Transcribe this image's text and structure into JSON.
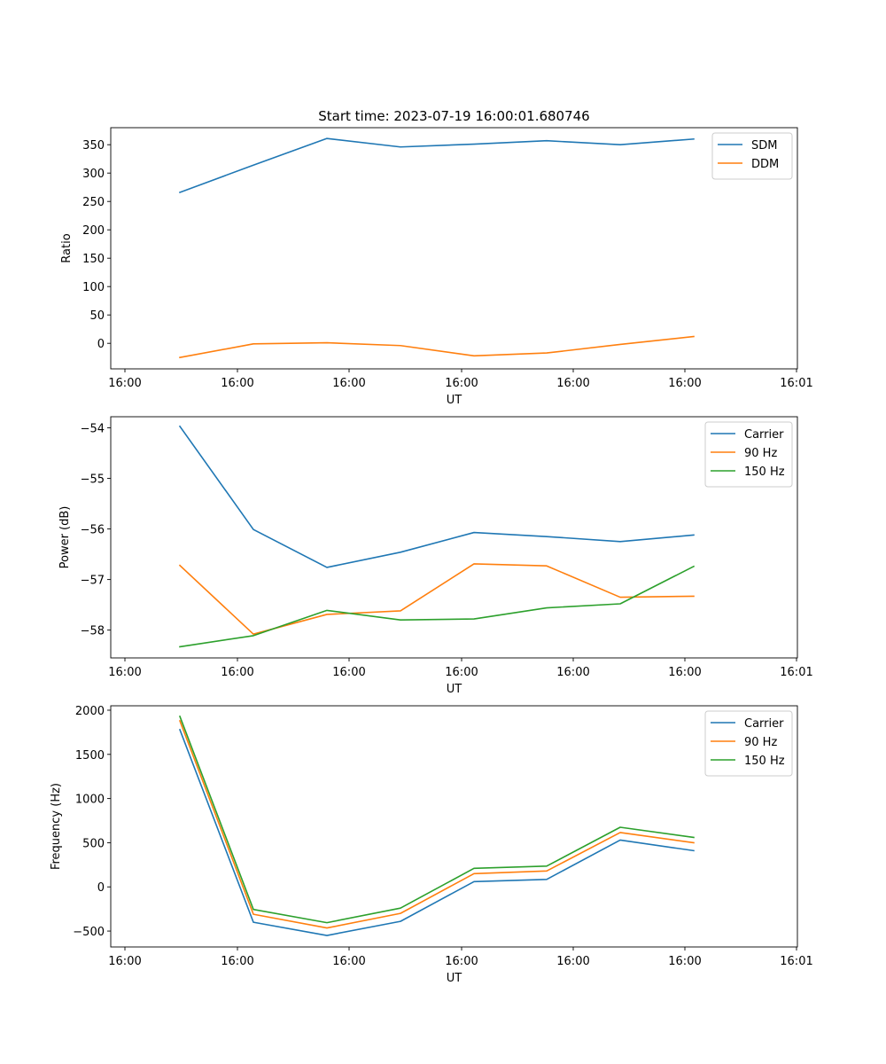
{
  "figure_title": "Start time: 2023-07-19 16:00:01.680746",
  "colors": {
    "blue": "#1f77b4",
    "orange": "#ff7f0e",
    "green": "#2ca02c"
  },
  "chart_data": [
    {
      "type": "line",
      "title": "Start time: 2023-07-19 16:00:01.680746",
      "xlabel": "UT",
      "ylabel": "Ratio",
      "x_tick_labels": [
        "16:00",
        "16:00",
        "16:00",
        "16:00",
        "16:00",
        "16:00",
        "16:01"
      ],
      "y_ticks": [
        0,
        50,
        100,
        150,
        200,
        250,
        300,
        350
      ],
      "ylim": [
        -45,
        380
      ],
      "legend_position": "top-right",
      "x": [
        1,
        2,
        3,
        4,
        5,
        6,
        7,
        8
      ],
      "series": [
        {
          "name": "SDM",
          "color": "#1f77b4",
          "values": [
            266,
            314,
            361,
            346,
            351,
            357,
            350,
            360
          ]
        },
        {
          "name": "DDM",
          "color": "#ff7f0e",
          "values": [
            -25,
            -1,
            1,
            -4,
            -22,
            -17,
            -2,
            12
          ]
        }
      ]
    },
    {
      "type": "line",
      "title": "",
      "xlabel": "UT",
      "ylabel": "Power (dB)",
      "x_tick_labels": [
        "16:00",
        "16:00",
        "16:00",
        "16:00",
        "16:00",
        "16:00",
        "16:01"
      ],
      "y_ticks": [
        -58,
        -57,
        -56,
        -55,
        -54
      ],
      "y_tick_labels": [
        "−58",
        "−57",
        "−56",
        "−55",
        "−54"
      ],
      "ylim": [
        -58.55,
        -53.78
      ],
      "legend_position": "top-right",
      "x": [
        1,
        2,
        3,
        4,
        5,
        6,
        7,
        8
      ],
      "series": [
        {
          "name": "Carrier",
          "color": "#1f77b4",
          "values": [
            -53.97,
            -56.01,
            -56.76,
            -56.46,
            -56.07,
            -56.15,
            -56.25,
            -56.12
          ]
        },
        {
          "name": "90 Hz",
          "color": "#ff7f0e",
          "values": [
            -56.72,
            -58.08,
            -57.69,
            -57.62,
            -56.69,
            -56.73,
            -57.35,
            -57.33
          ]
        },
        {
          "name": "150 Hz",
          "color": "#2ca02c",
          "values": [
            -58.33,
            -58.11,
            -57.61,
            -57.8,
            -57.78,
            -57.56,
            -57.48,
            -56.74
          ]
        }
      ]
    },
    {
      "type": "line",
      "title": "",
      "xlabel": "UT",
      "ylabel": "Frequency (Hz)",
      "x_tick_labels": [
        "16:00",
        "16:00",
        "16:00",
        "16:00",
        "16:00",
        "16:00",
        "16:01"
      ],
      "y_ticks": [
        -500,
        0,
        500,
        1000,
        1500,
        2000
      ],
      "y_tick_labels": [
        "−500",
        "0",
        "500",
        "1000",
        "1500",
        "2000"
      ],
      "ylim": [
        -680,
        2050
      ],
      "legend_position": "top-right",
      "x": [
        1,
        2,
        3,
        4,
        5,
        6,
        7,
        8
      ],
      "series": [
        {
          "name": "Carrier",
          "color": "#1f77b4",
          "values": [
            1780,
            -400,
            -550,
            -390,
            60,
            85,
            530,
            410
          ]
        },
        {
          "name": "90 Hz",
          "color": "#ff7f0e",
          "values": [
            1880,
            -310,
            -465,
            -300,
            150,
            180,
            615,
            500
          ]
        },
        {
          "name": "150 Hz",
          "color": "#2ca02c",
          "values": [
            1930,
            -255,
            -405,
            -240,
            210,
            235,
            675,
            560
          ]
        }
      ]
    }
  ]
}
